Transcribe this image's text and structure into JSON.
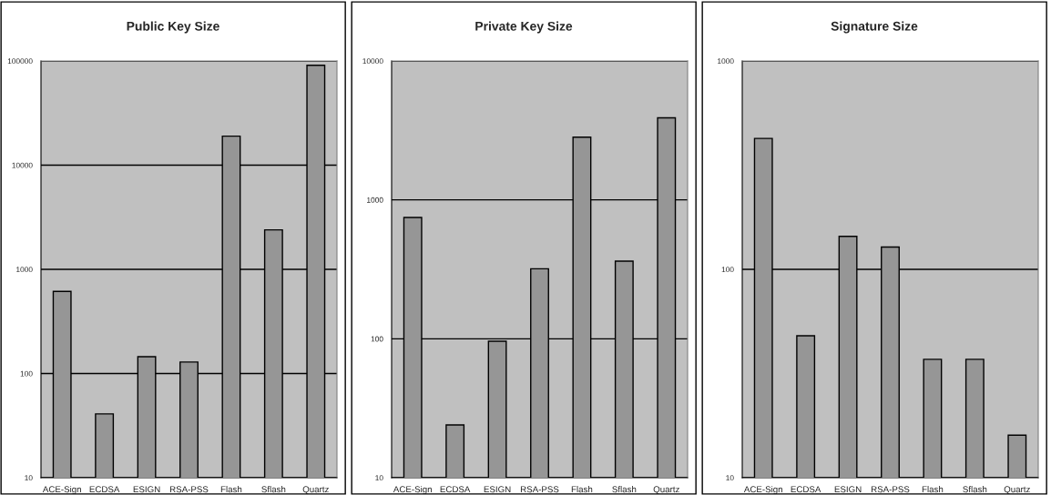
{
  "chart_data": [
    {
      "type": "bar",
      "title": "Public Key Size",
      "categories": [
        "ACE-Sign",
        "ECDSA",
        "ESIGN",
        "RSA-PSS",
        "Flash",
        "Sflash",
        "Quartz"
      ],
      "values": [
        614,
        41,
        145,
        129,
        19000,
        2390,
        91000
      ],
      "color": "#969696",
      "log": "y",
      "ylim": [
        10,
        100000
      ],
      "yticks": [
        10,
        100,
        1000,
        10000,
        100000
      ],
      "grid": "y"
    },
    {
      "type": "bar",
      "title": "Private Key Size",
      "categories": [
        "ACE-Sign",
        "ECDSA",
        "ESIGN",
        "RSA-PSS",
        "Flash",
        "Sflash",
        "Quartz"
      ],
      "values": [
        747,
        24,
        96,
        319,
        2830,
        362,
        3900
      ],
      "color": "#969696",
      "log": "y",
      "ylim": [
        10,
        10000
      ],
      "yticks": [
        10,
        100,
        1000,
        10000
      ],
      "grid": "y"
    },
    {
      "type": "bar",
      "title": "Signature Size",
      "categories": [
        "ACE-Sign",
        "ECDSA",
        "ESIGN",
        "RSA-PSS",
        "Flash",
        "Sflash",
        "Quartz"
      ],
      "values": [
        425,
        48,
        144,
        128,
        37,
        37,
        16
      ],
      "color": "#969696",
      "log": "y",
      "ylim": [
        10,
        1000
      ],
      "yticks": [
        10,
        100,
        1000
      ],
      "grid": "y"
    }
  ]
}
